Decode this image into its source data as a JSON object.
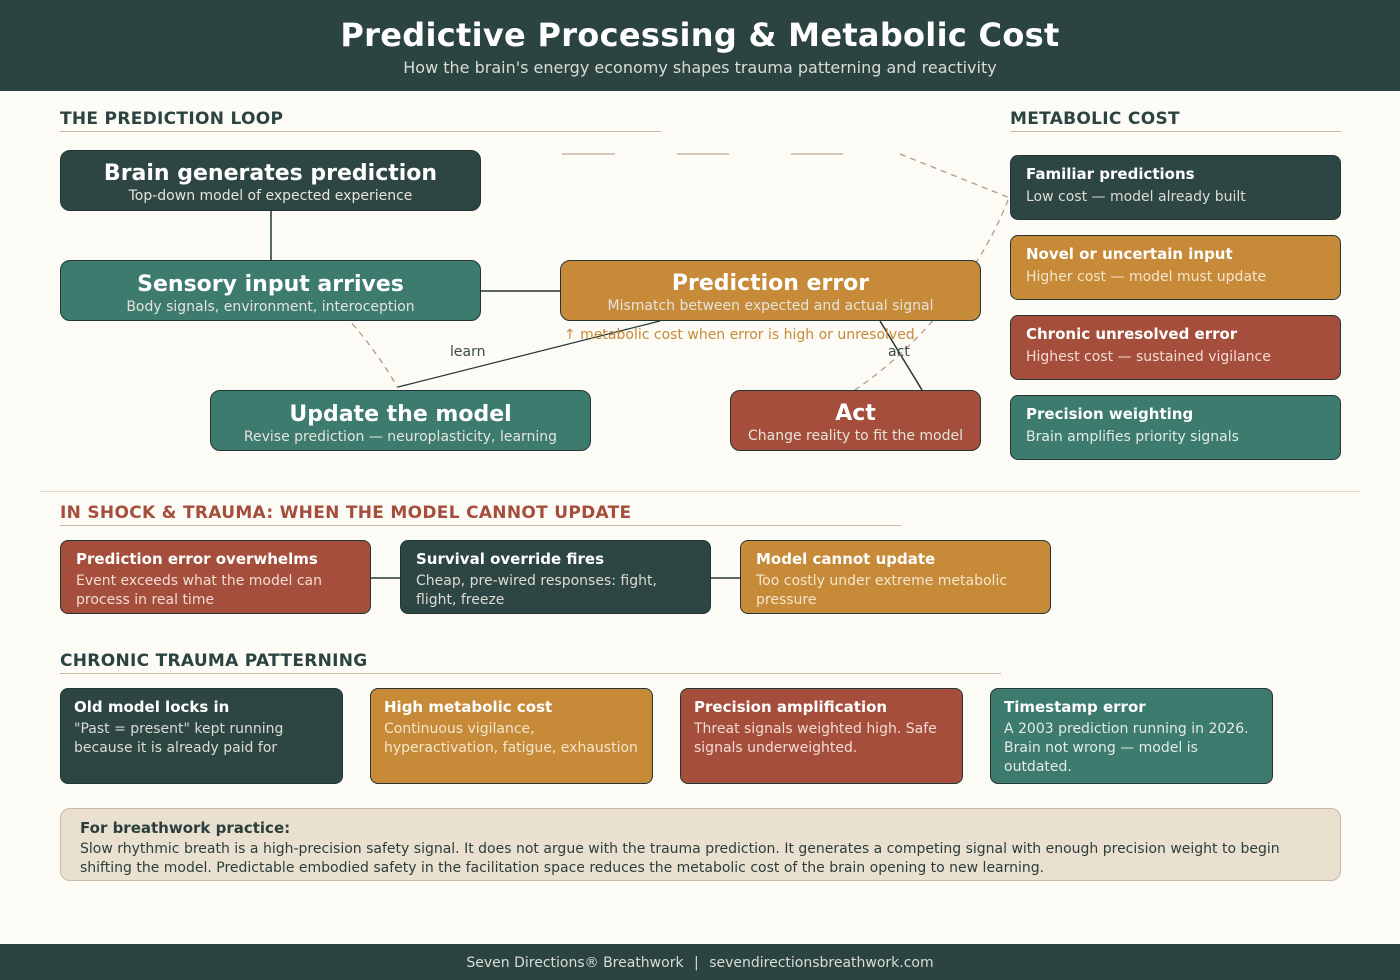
{
  "header": {
    "title": "Predictive Processing & Metabolic Cost",
    "subtitle": "How the brain's energy economy shapes trauma patterning and reactivity"
  },
  "loop": {
    "section_title": "THE PREDICTION LOOP",
    "nodes": {
      "prediction": {
        "title": "Brain generates prediction",
        "sub": "Top-down model of expected experience"
      },
      "sensory": {
        "title": "Sensory input arrives",
        "sub": "Body signals, environment, interoception"
      },
      "error": {
        "title": "Prediction error",
        "sub": "Mismatch between expected and actual signal"
      },
      "update": {
        "title": "Update the model",
        "sub": "Revise prediction — neuroplasticity, learning"
      },
      "act": {
        "title": "Act",
        "sub": "Change reality to fit the model"
      }
    },
    "edge_labels": {
      "learn": "learn",
      "act": "act"
    },
    "cost_note": "↑ metabolic cost when error is high or unresolved"
  },
  "metabolic": {
    "section_title": "METABOLIC COST",
    "cards": [
      {
        "title": "Familiar predictions",
        "text": "Low cost — model already built"
      },
      {
        "title": "Novel or uncertain input",
        "text": "Higher cost — model must update"
      },
      {
        "title": "Chronic unresolved error",
        "text": "Highest cost — sustained vigilance"
      },
      {
        "title": "Precision weighting",
        "text": "Brain amplifies priority signals"
      }
    ]
  },
  "shock": {
    "section_title": "IN SHOCK & TRAUMA: WHEN THE MODEL CANNOT UPDATE",
    "cards": [
      {
        "title": "Prediction error overwhelms",
        "text": "Event exceeds what the model can process in real time"
      },
      {
        "title": "Survival override fires",
        "text": "Cheap, pre-wired responses: fight, flight, freeze"
      },
      {
        "title": "Model cannot update",
        "text": "Too costly under extreme metabolic pressure"
      }
    ]
  },
  "chronic": {
    "section_title": "CHRONIC TRAUMA PATTERNING",
    "cards": [
      {
        "title": "Old model locks in",
        "text": "\"Past = present\" kept running because it is already paid for"
      },
      {
        "title": "High metabolic cost",
        "text": "Continuous vigilance, hyperactivation, fatigue, exhaustion"
      },
      {
        "title": "Precision amplification",
        "text": "Threat signals weighted high. Safe signals underweighted."
      },
      {
        "title": "Timestamp error",
        "text": "A 2003 prediction running in 2026. Brain not wrong — model is outdated."
      }
    ]
  },
  "practice": {
    "title": "For breathwork practice:",
    "text": "Slow rhythmic breath is a high-precision safety signal. It does not argue with the trauma prediction. It generates a competing signal with enough precision weight to begin shifting the model. Predictable embodied safety in the facilitation space reduces the metabolic cost of the brain opening to new learning."
  },
  "footer": {
    "brand": "Seven Directions® Breathwork",
    "separator": "|",
    "site": "sevendirectionsbreathwork.com"
  },
  "colors": {
    "dark": "#2e4643",
    "teal": "#3c7b6e",
    "amber": "#c68a38",
    "rust": "#a44e3b",
    "cream": "#fcfbf6",
    "practice_bg": "#e9e0d0"
  }
}
